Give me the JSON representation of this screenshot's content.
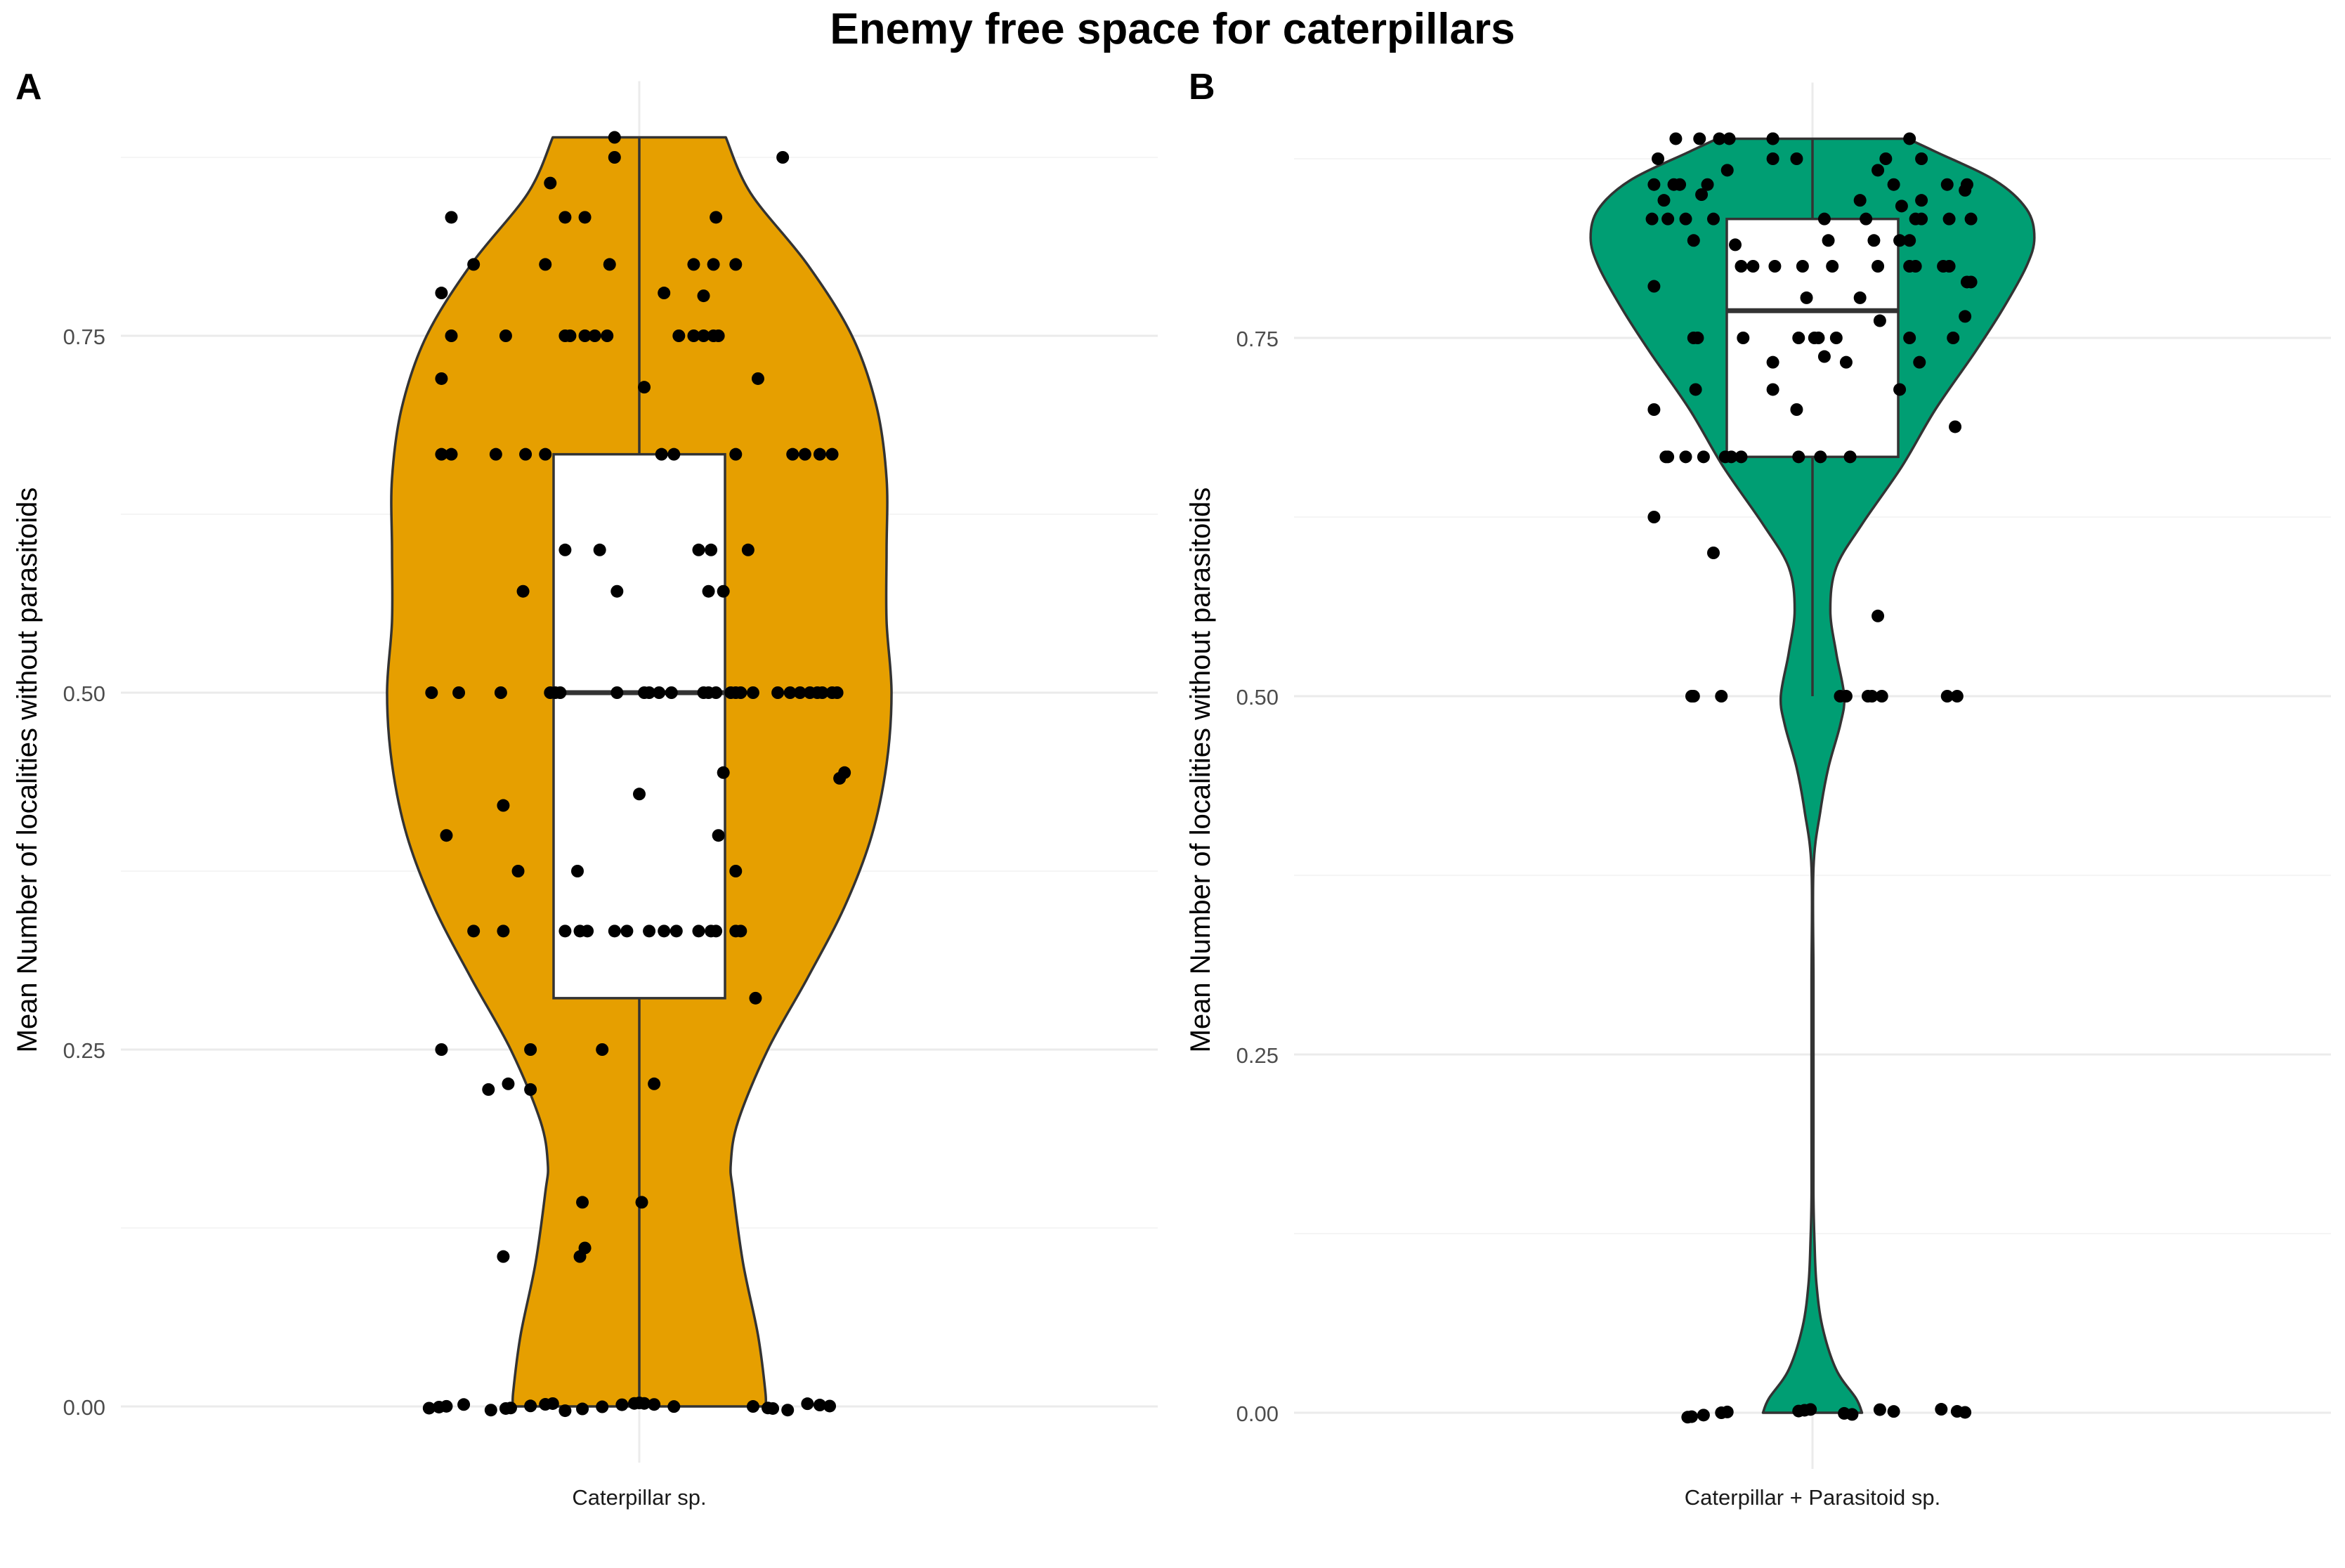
{
  "figure": {
    "title": "Enemy free space for caterpillars"
  },
  "colors": {
    "panel_a_fill": "#E69F00",
    "panel_b_fill": "#009E73",
    "outline": "#333333",
    "point": "#000000",
    "box_fill": "#FFFFFF",
    "grid_major": "#EBEBEB",
    "grid_minor": "#F5F5F5"
  },
  "chart_data": [
    {
      "type": "violin",
      "panel_label": "A",
      "ylabel": "Mean Number of localities without parasitoids",
      "categories": [
        "Caterpillar sp."
      ],
      "ylim": [
        0,
        0.889
      ],
      "y_ticks": [
        0.0,
        0.25,
        0.5,
        0.75
      ],
      "y_tick_labels": [
        "0.00",
        "0.25",
        "0.50",
        "0.75"
      ],
      "grid": true,
      "fill_color": "#E69F00",
      "box": {
        "q1": 0.286,
        "median": 0.5,
        "q3": 0.667,
        "whisker_low": 0.0,
        "whisker_high": 0.889
      },
      "violin_profile": {
        "y": [
          0.0,
          0.01,
          0.05,
          0.1,
          0.15,
          0.17,
          0.2,
          0.25,
          0.3,
          0.35,
          0.4,
          0.45,
          0.5,
          0.55,
          0.6,
          0.65,
          0.7,
          0.75,
          0.8,
          0.85,
          0.889
        ],
        "half_width": [
          0.51,
          0.51,
          0.48,
          0.42,
          0.38,
          0.37,
          0.4,
          0.52,
          0.68,
          0.83,
          0.94,
          1.0,
          1.02,
          1.0,
          1.0,
          1.0,
          0.96,
          0.86,
          0.68,
          0.45,
          0.35
        ]
      },
      "points": [
        {
          "x": -0.85,
          "y": 0.0
        },
        {
          "x": -0.81,
          "y": 0.0
        },
        {
          "x": -0.78,
          "y": 0.0
        },
        {
          "x": -0.71,
          "y": 0.0
        },
        {
          "x": -0.6,
          "y": 0.0
        },
        {
          "x": -0.54,
          "y": 0.0
        },
        {
          "x": -0.52,
          "y": 0.0
        },
        {
          "x": -0.44,
          "y": 0.0
        },
        {
          "x": -0.38,
          "y": 0.0
        },
        {
          "x": -0.35,
          "y": 0.0
        },
        {
          "x": -0.3,
          "y": 0.0
        },
        {
          "x": -0.23,
          "y": 0.0
        },
        {
          "x": -0.15,
          "y": 0.0
        },
        {
          "x": -0.07,
          "y": 0.0
        },
        {
          "x": -0.02,
          "y": 0.0
        },
        {
          "x": 0.0,
          "y": 0.0
        },
        {
          "x": 0.02,
          "y": 0.0
        },
        {
          "x": 0.06,
          "y": 0.0
        },
        {
          "x": 0.14,
          "y": 0.0
        },
        {
          "x": 0.46,
          "y": 0.0
        },
        {
          "x": 0.52,
          "y": 0.0
        },
        {
          "x": 0.54,
          "y": 0.0
        },
        {
          "x": 0.6,
          "y": 0.0
        },
        {
          "x": 0.68,
          "y": 0.0
        },
        {
          "x": 0.73,
          "y": 0.0
        },
        {
          "x": 0.77,
          "y": 0.0
        },
        {
          "x": -0.55,
          "y": 0.105
        },
        {
          "x": -0.24,
          "y": 0.105
        },
        {
          "x": -0.22,
          "y": 0.111
        },
        {
          "x": -0.23,
          "y": 0.143
        },
        {
          "x": 0.01,
          "y": 0.143
        },
        {
          "x": -0.61,
          "y": 0.222
        },
        {
          "x": -0.44,
          "y": 0.222
        },
        {
          "x": -0.53,
          "y": 0.226
        },
        {
          "x": 0.06,
          "y": 0.226
        },
        {
          "x": -0.8,
          "y": 0.25
        },
        {
          "x": -0.44,
          "y": 0.25
        },
        {
          "x": -0.15,
          "y": 0.25
        },
        {
          "x": 0.47,
          "y": 0.286
        },
        {
          "x": -0.67,
          "y": 0.333
        },
        {
          "x": -0.55,
          "y": 0.333
        },
        {
          "x": -0.3,
          "y": 0.333
        },
        {
          "x": -0.24,
          "y": 0.333
        },
        {
          "x": -0.21,
          "y": 0.333
        },
        {
          "x": -0.1,
          "y": 0.333
        },
        {
          "x": -0.05,
          "y": 0.333
        },
        {
          "x": 0.04,
          "y": 0.333
        },
        {
          "x": 0.1,
          "y": 0.333
        },
        {
          "x": 0.15,
          "y": 0.333
        },
        {
          "x": 0.24,
          "y": 0.333
        },
        {
          "x": 0.29,
          "y": 0.333
        },
        {
          "x": 0.31,
          "y": 0.333
        },
        {
          "x": 0.39,
          "y": 0.333
        },
        {
          "x": 0.41,
          "y": 0.333
        },
        {
          "x": 0.39,
          "y": 0.375
        },
        {
          "x": -0.49,
          "y": 0.375
        },
        {
          "x": -0.25,
          "y": 0.375
        },
        {
          "x": -0.78,
          "y": 0.4
        },
        {
          "x": 0.32,
          "y": 0.4
        },
        {
          "x": -0.55,
          "y": 0.421
        },
        {
          "x": 0.0,
          "y": 0.429
        },
        {
          "x": 0.81,
          "y": 0.44
        },
        {
          "x": 0.83,
          "y": 0.444
        },
        {
          "x": 0.34,
          "y": 0.444
        },
        {
          "x": -0.84,
          "y": 0.5
        },
        {
          "x": -0.73,
          "y": 0.5
        },
        {
          "x": -0.56,
          "y": 0.5
        },
        {
          "x": -0.36,
          "y": 0.5
        },
        {
          "x": -0.34,
          "y": 0.5
        },
        {
          "x": -0.32,
          "y": 0.5
        },
        {
          "x": -0.09,
          "y": 0.5
        },
        {
          "x": 0.02,
          "y": 0.5
        },
        {
          "x": 0.04,
          "y": 0.5
        },
        {
          "x": 0.08,
          "y": 0.5
        },
        {
          "x": 0.13,
          "y": 0.5
        },
        {
          "x": 0.26,
          "y": 0.5
        },
        {
          "x": 0.28,
          "y": 0.5
        },
        {
          "x": 0.31,
          "y": 0.5
        },
        {
          "x": 0.37,
          "y": 0.5
        },
        {
          "x": 0.39,
          "y": 0.5
        },
        {
          "x": 0.41,
          "y": 0.5
        },
        {
          "x": 0.61,
          "y": 0.5
        },
        {
          "x": 0.65,
          "y": 0.5
        },
        {
          "x": 0.69,
          "y": 0.5
        },
        {
          "x": 0.72,
          "y": 0.5
        },
        {
          "x": 0.74,
          "y": 0.5
        },
        {
          "x": 0.78,
          "y": 0.5
        },
        {
          "x": 0.8,
          "y": 0.5
        },
        {
          "x": 0.46,
          "y": 0.5
        },
        {
          "x": 0.56,
          "y": 0.5
        },
        {
          "x": -0.47,
          "y": 0.571
        },
        {
          "x": -0.09,
          "y": 0.571
        },
        {
          "x": 0.28,
          "y": 0.571
        },
        {
          "x": 0.34,
          "y": 0.571
        },
        {
          "x": -0.3,
          "y": 0.6
        },
        {
          "x": -0.16,
          "y": 0.6
        },
        {
          "x": 0.24,
          "y": 0.6
        },
        {
          "x": 0.29,
          "y": 0.6
        },
        {
          "x": 0.44,
          "y": 0.6
        },
        {
          "x": -0.8,
          "y": 0.667
        },
        {
          "x": -0.76,
          "y": 0.667
        },
        {
          "x": -0.58,
          "y": 0.667
        },
        {
          "x": -0.46,
          "y": 0.667
        },
        {
          "x": -0.38,
          "y": 0.667
        },
        {
          "x": 0.09,
          "y": 0.667
        },
        {
          "x": 0.14,
          "y": 0.667
        },
        {
          "x": 0.39,
          "y": 0.667
        },
        {
          "x": 0.62,
          "y": 0.667
        },
        {
          "x": 0.67,
          "y": 0.667
        },
        {
          "x": 0.73,
          "y": 0.667
        },
        {
          "x": 0.78,
          "y": 0.667
        },
        {
          "x": -0.8,
          "y": 0.72
        },
        {
          "x": 0.02,
          "y": 0.714
        },
        {
          "x": 0.48,
          "y": 0.72
        },
        {
          "x": -0.76,
          "y": 0.75
        },
        {
          "x": -0.54,
          "y": 0.75
        },
        {
          "x": -0.3,
          "y": 0.75
        },
        {
          "x": -0.28,
          "y": 0.75
        },
        {
          "x": -0.22,
          "y": 0.75
        },
        {
          "x": -0.18,
          "y": 0.75
        },
        {
          "x": -0.13,
          "y": 0.75
        },
        {
          "x": 0.16,
          "y": 0.75
        },
        {
          "x": 0.22,
          "y": 0.75
        },
        {
          "x": 0.26,
          "y": 0.75
        },
        {
          "x": 0.3,
          "y": 0.75
        },
        {
          "x": 0.32,
          "y": 0.75
        },
        {
          "x": -0.8,
          "y": 0.78
        },
        {
          "x": -0.67,
          "y": 0.8
        },
        {
          "x": -0.38,
          "y": 0.8
        },
        {
          "x": -0.12,
          "y": 0.8
        },
        {
          "x": 0.1,
          "y": 0.78
        },
        {
          "x": 0.22,
          "y": 0.8
        },
        {
          "x": 0.26,
          "y": 0.778
        },
        {
          "x": 0.3,
          "y": 0.8
        },
        {
          "x": 0.39,
          "y": 0.8
        },
        {
          "x": -0.76,
          "y": 0.833
        },
        {
          "x": -0.3,
          "y": 0.833
        },
        {
          "x": -0.22,
          "y": 0.833
        },
        {
          "x": 0.31,
          "y": 0.833
        },
        {
          "x": -0.36,
          "y": 0.857
        },
        {
          "x": -0.1,
          "y": 0.875
        },
        {
          "x": -0.1,
          "y": 0.889
        },
        {
          "x": 0.58,
          "y": 0.875
        }
      ]
    },
    {
      "type": "violin",
      "panel_label": "B",
      "ylabel": "Mean Number of localities without parasitoids",
      "categories": [
        "Caterpillar + Parasitoid sp."
      ],
      "ylim": [
        0,
        0.889
      ],
      "y_ticks": [
        0.0,
        0.25,
        0.5,
        0.75
      ],
      "y_tick_labels": [
        "0.00",
        "0.25",
        "0.50",
        "0.75"
      ],
      "grid": true,
      "fill_color": "#009E73",
      "box": {
        "q1": 0.667,
        "median": 0.769,
        "q3": 0.833,
        "whisker_low": 0.5,
        "whisker_high": 0.889
      },
      "violin_profile": {
        "y": [
          0.0,
          0.01,
          0.03,
          0.06,
          0.09,
          0.12,
          0.15,
          0.2,
          0.3,
          0.38,
          0.42,
          0.45,
          0.48,
          0.5,
          0.53,
          0.56,
          0.59,
          0.62,
          0.66,
          0.7,
          0.74,
          0.77,
          0.8,
          0.82,
          0.84,
          0.86,
          0.88,
          0.889
        ],
        "half_width": [
          0.25,
          0.22,
          0.12,
          0.05,
          0.02,
          0.01,
          0.005,
          0.005,
          0.005,
          0.005,
          0.04,
          0.08,
          0.14,
          0.16,
          0.12,
          0.09,
          0.12,
          0.25,
          0.45,
          0.62,
          0.82,
          0.96,
          1.08,
          1.12,
          1.08,
          0.92,
          0.62,
          0.48
        ]
      },
      "points": [
        {
          "x": -0.63,
          "y": 0.0
        },
        {
          "x": -0.61,
          "y": 0.0
        },
        {
          "x": -0.55,
          "y": 0.0
        },
        {
          "x": -0.46,
          "y": 0.0
        },
        {
          "x": -0.43,
          "y": 0.0
        },
        {
          "x": -0.07,
          "y": 0.0
        },
        {
          "x": -0.04,
          "y": 0.0
        },
        {
          "x": -0.01,
          "y": 0.0
        },
        {
          "x": 0.16,
          "y": 0.0
        },
        {
          "x": 0.2,
          "y": 0.0
        },
        {
          "x": 0.34,
          "y": 0.0
        },
        {
          "x": 0.41,
          "y": 0.0
        },
        {
          "x": 0.65,
          "y": 0.0
        },
        {
          "x": 0.73,
          "y": 0.0
        },
        {
          "x": 0.77,
          "y": 0.0
        },
        {
          "x": -0.61,
          "y": 0.5
        },
        {
          "x": -0.6,
          "y": 0.5
        },
        {
          "x": -0.46,
          "y": 0.5
        },
        {
          "x": 0.14,
          "y": 0.5
        },
        {
          "x": 0.17,
          "y": 0.5
        },
        {
          "x": 0.28,
          "y": 0.5
        },
        {
          "x": 0.3,
          "y": 0.5
        },
        {
          "x": 0.35,
          "y": 0.5
        },
        {
          "x": 0.68,
          "y": 0.5
        },
        {
          "x": 0.73,
          "y": 0.5
        },
        {
          "x": 0.33,
          "y": 0.556
        },
        {
          "x": -0.5,
          "y": 0.6
        },
        {
          "x": -0.8,
          "y": 0.625
        },
        {
          "x": -0.74,
          "y": 0.667
        },
        {
          "x": -0.73,
          "y": 0.667
        },
        {
          "x": -0.64,
          "y": 0.667
        },
        {
          "x": -0.55,
          "y": 0.667
        },
        {
          "x": -0.44,
          "y": 0.667
        },
        {
          "x": -0.41,
          "y": 0.667
        },
        {
          "x": -0.36,
          "y": 0.667
        },
        {
          "x": -0.07,
          "y": 0.667
        },
        {
          "x": 0.04,
          "y": 0.667
        },
        {
          "x": 0.19,
          "y": 0.667
        },
        {
          "x": 0.72,
          "y": 0.688
        },
        {
          "x": -0.8,
          "y": 0.7
        },
        {
          "x": -0.08,
          "y": 0.7
        },
        {
          "x": -0.59,
          "y": 0.714
        },
        {
          "x": 0.44,
          "y": 0.714
        },
        {
          "x": -0.2,
          "y": 0.714
        },
        {
          "x": -0.2,
          "y": 0.733
        },
        {
          "x": 0.17,
          "y": 0.733
        },
        {
          "x": 0.06,
          "y": 0.737
        },
        {
          "x": 0.54,
          "y": 0.733
        },
        {
          "x": -0.6,
          "y": 0.75
        },
        {
          "x": -0.58,
          "y": 0.75
        },
        {
          "x": -0.35,
          "y": 0.75
        },
        {
          "x": -0.07,
          "y": 0.75
        },
        {
          "x": 0.01,
          "y": 0.75
        },
        {
          "x": 0.03,
          "y": 0.75
        },
        {
          "x": 0.12,
          "y": 0.75
        },
        {
          "x": 0.49,
          "y": 0.75
        },
        {
          "x": 0.71,
          "y": 0.75
        },
        {
          "x": 0.77,
          "y": 0.765
        },
        {
          "x": -0.03,
          "y": 0.778
        },
        {
          "x": 0.24,
          "y": 0.778
        },
        {
          "x": 0.34,
          "y": 0.762
        },
        {
          "x": -0.8,
          "y": 0.786
        },
        {
          "x": 0.78,
          "y": 0.789
        },
        {
          "x": 0.8,
          "y": 0.789
        },
        {
          "x": 0.52,
          "y": 0.8
        },
        {
          "x": -0.19,
          "y": 0.8
        },
        {
          "x": 0.33,
          "y": 0.8
        },
        {
          "x": -0.36,
          "y": 0.8
        },
        {
          "x": -0.3,
          "y": 0.8
        },
        {
          "x": 0.66,
          "y": 0.8
        },
        {
          "x": 0.69,
          "y": 0.8
        },
        {
          "x": 0.49,
          "y": 0.8
        },
        {
          "x": -0.05,
          "y": 0.8
        },
        {
          "x": 0.1,
          "y": 0.8
        },
        {
          "x": -0.39,
          "y": 0.815
        },
        {
          "x": 0.31,
          "y": 0.818
        },
        {
          "x": 0.44,
          "y": 0.818
        },
        {
          "x": 0.49,
          "y": 0.818
        },
        {
          "x": -0.6,
          "y": 0.818
        },
        {
          "x": 0.08,
          "y": 0.818
        },
        {
          "x": -0.81,
          "y": 0.833
        },
        {
          "x": -0.73,
          "y": 0.833
        },
        {
          "x": -0.64,
          "y": 0.833
        },
        {
          "x": -0.5,
          "y": 0.833
        },
        {
          "x": 0.52,
          "y": 0.833
        },
        {
          "x": 0.55,
          "y": 0.833
        },
        {
          "x": 0.69,
          "y": 0.833
        },
        {
          "x": 0.8,
          "y": 0.833
        },
        {
          "x": 0.27,
          "y": 0.833
        },
        {
          "x": 0.06,
          "y": 0.833
        },
        {
          "x": 0.45,
          "y": 0.842
        },
        {
          "x": 0.55,
          "y": 0.846
        },
        {
          "x": 0.77,
          "y": 0.853
        },
        {
          "x": 0.78,
          "y": 0.857
        },
        {
          "x": 0.24,
          "y": 0.846
        },
        {
          "x": -0.75,
          "y": 0.846
        },
        {
          "x": -0.56,
          "y": 0.85
        },
        {
          "x": -0.7,
          "y": 0.857
        },
        {
          "x": -0.67,
          "y": 0.857
        },
        {
          "x": -0.8,
          "y": 0.857
        },
        {
          "x": 0.41,
          "y": 0.857
        },
        {
          "x": 0.68,
          "y": 0.857
        },
        {
          "x": -0.53,
          "y": 0.857
        },
        {
          "x": -0.43,
          "y": 0.867
        },
        {
          "x": 0.33,
          "y": 0.867
        },
        {
          "x": -0.78,
          "y": 0.875
        },
        {
          "x": 0.55,
          "y": 0.875
        },
        {
          "x": -0.2,
          "y": 0.875
        },
        {
          "x": -0.08,
          "y": 0.875
        },
        {
          "x": 0.37,
          "y": 0.875
        },
        {
          "x": -0.69,
          "y": 0.889
        },
        {
          "x": -0.57,
          "y": 0.889
        },
        {
          "x": -0.47,
          "y": 0.889
        },
        {
          "x": -0.42,
          "y": 0.889
        },
        {
          "x": -0.2,
          "y": 0.889
        },
        {
          "x": 0.49,
          "y": 0.889
        },
        {
          "x": -0.2,
          "y": 0.889
        }
      ]
    }
  ]
}
